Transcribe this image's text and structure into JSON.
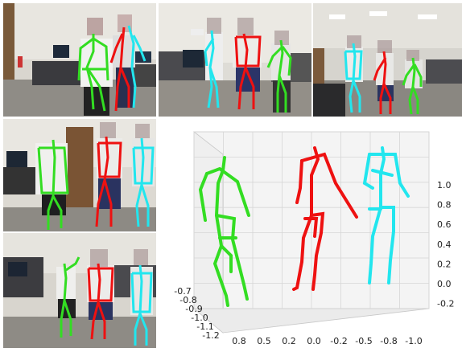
{
  "colors": {
    "person_a": "#33dd22",
    "person_b": "#ee1111",
    "person_c": "#22e6ee"
  },
  "plot": {
    "z_ticks": [
      "1.0",
      "0.8",
      "0.6",
      "0.4",
      "0.2",
      "0.0",
      "-0.2"
    ],
    "x_ticks": [
      "0.8",
      "0.5",
      "0.2",
      "0.0",
      "-0.2",
      "-0.5",
      "-0.8",
      "-1.0"
    ],
    "y_ticks": [
      "-0.7",
      "-0.8",
      "-0.9",
      "-1.0",
      "-1.1",
      "-1.2"
    ]
  }
}
